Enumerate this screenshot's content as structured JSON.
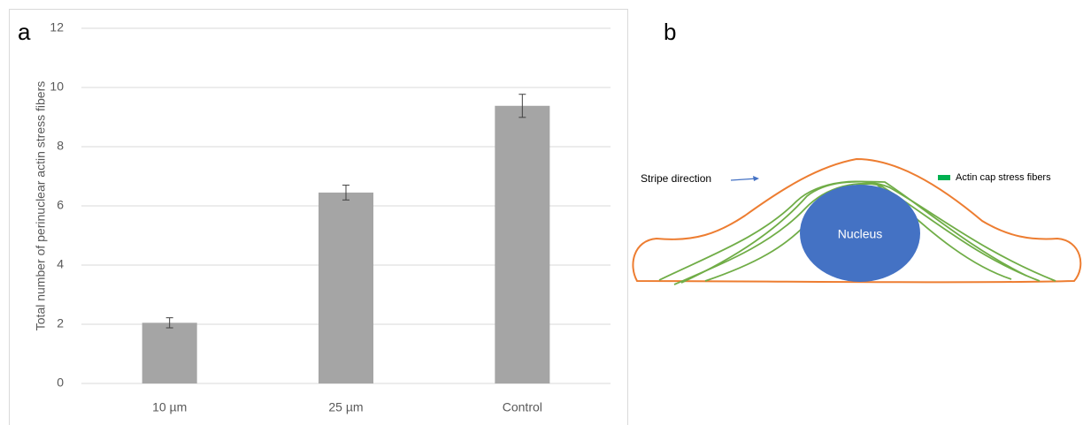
{
  "panels": [
    "a",
    "b"
  ],
  "chart_data": {
    "type": "bar",
    "y_label": "Total number of perinuclear actin stress fibers",
    "categories": [
      "10 µm",
      "25 µm",
      "Control"
    ],
    "values": [
      2.05,
      6.45,
      9.38
    ],
    "errors": [
      0.17,
      0.25,
      0.39
    ],
    "color": "#a5a5a5",
    "ylim": [
      0,
      12
    ],
    "yticks": [
      0,
      2,
      4,
      6,
      8,
      10,
      12
    ],
    "grid": true
  },
  "diagram": {
    "stripe_label": "Stripe direction",
    "nucleus_label": "Nucleus",
    "legend_label": "Actin cap stress fibers"
  }
}
